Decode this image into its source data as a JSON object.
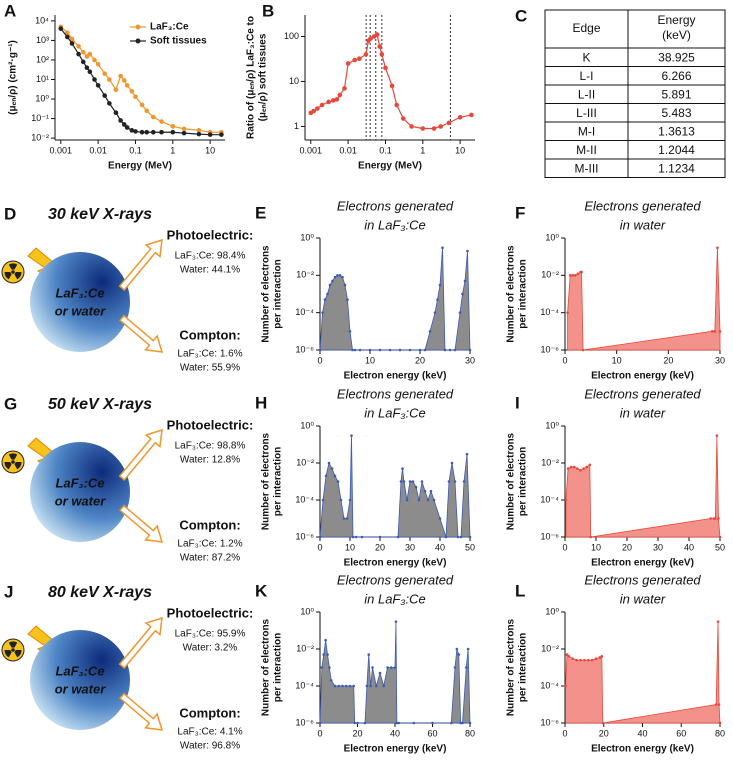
{
  "chart_data": [
    {
      "type": "line",
      "panel_label": "A",
      "xscale": "log",
      "yscale": "log",
      "xlabel": "Energy (MeV)",
      "ylabel": [
        "(μₑₙ/ρ) (cm²·g⁻¹)"
      ],
      "xlim": [
        0.0007,
        25
      ],
      "ylim": [
        0.008,
        20000
      ],
      "xticks": [
        0.001,
        0.01,
        0.1,
        1,
        10
      ],
      "yticks": [
        {
          "value": 0.01,
          "label": "10⁻²"
        },
        {
          "value": 0.1,
          "label": "10⁻¹"
        },
        {
          "value": 1,
          "label": "10⁰"
        },
        {
          "value": 10,
          "label": "10¹"
        },
        {
          "value": 100,
          "label": "10²"
        },
        {
          "value": 1000,
          "label": "10³"
        },
        {
          "value": 10000,
          "label": "10⁴"
        }
      ],
      "legend": "upper right",
      "series": [
        {
          "name": "LaF₃:Ce",
          "color": "#f0962d",
          "x": [
            0.001,
            0.0015,
            0.002,
            0.003,
            0.004,
            0.005,
            0.006,
            0.008,
            0.01,
            0.015,
            0.02,
            0.03,
            0.04,
            0.05,
            0.06,
            0.08,
            0.1,
            0.15,
            0.2,
            0.3,
            0.5,
            1,
            2,
            5,
            10,
            20
          ],
          "values": [
            5000,
            2500,
            1200,
            500,
            250,
            150,
            200,
            100,
            60,
            20,
            10,
            3,
            15,
            9,
            5,
            2.5,
            1.3,
            0.5,
            0.25,
            0.12,
            0.07,
            0.04,
            0.03,
            0.025,
            0.02,
            0.02
          ]
        },
        {
          "name": "Soft tissues",
          "color": "#222222",
          "x": [
            0.001,
            0.0015,
            0.002,
            0.003,
            0.004,
            0.005,
            0.006,
            0.008,
            0.01,
            0.015,
            0.02,
            0.03,
            0.04,
            0.05,
            0.06,
            0.08,
            0.1,
            0.15,
            0.2,
            0.3,
            0.5,
            1,
            2,
            5,
            10,
            20
          ],
          "values": [
            4000,
            1500,
            700,
            200,
            80,
            40,
            25,
            10,
            5,
            1.5,
            0.6,
            0.2,
            0.08,
            0.05,
            0.035,
            0.025,
            0.022,
            0.02,
            0.02,
            0.02,
            0.02,
            0.02,
            0.018,
            0.016,
            0.015,
            0.015
          ]
        }
      ]
    },
    {
      "type": "line",
      "panel_label": "B",
      "xscale": "log",
      "yscale": "log",
      "xlabel": "Energy (MeV)",
      "ylabel": [
        "Ratio of (μₑₙ/ρ) LaF₃:Ce to",
        "(μₑₙ/ρ) soft tissues"
      ],
      "xlim": [
        0.0007,
        25
      ],
      "ylim": [
        0.5,
        300
      ],
      "xticks": [
        0.001,
        0.01,
        0.1,
        1,
        10
      ],
      "yticks": [
        1,
        10,
        100
      ],
      "reference_lines": [
        0.0304,
        0.0389,
        0.055,
        0.08,
        5.5
      ],
      "series": [
        {
          "name": null,
          "color": "#e8473a",
          "x": [
            0.001,
            0.0012,
            0.0015,
            0.002,
            0.003,
            0.004,
            0.005,
            0.006,
            0.008,
            0.01,
            0.015,
            0.02,
            0.03,
            0.035,
            0.04,
            0.05,
            0.06,
            0.07,
            0.08,
            0.1,
            0.15,
            0.2,
            0.3,
            0.5,
            1,
            2,
            3,
            5,
            10,
            20
          ],
          "values": [
            2,
            2.2,
            2.5,
            3,
            3.5,
            3.8,
            4,
            5,
            7,
            25,
            30,
            32,
            40,
            80,
            90,
            100,
            110,
            60,
            40,
            20,
            8,
            3,
            1.5,
            1,
            0.9,
            0.9,
            1,
            1.2,
            1.6,
            1.8
          ]
        }
      ]
    },
    {
      "type": "area",
      "panel_label": "E",
      "yscale": "log",
      "title": [
        "Electrons generated",
        "in LaF₃:Ce"
      ],
      "xlabel": "Electron energy (keV)",
      "ylabel": [
        "Number of electrons",
        "per interaction"
      ],
      "xlim": [
        0,
        30
      ],
      "ylim": [
        1e-06,
        1
      ],
      "xticks": [
        0,
        10,
        20,
        30
      ],
      "yticks": [
        {
          "value": 1e-06,
          "label": "10⁻⁶"
        },
        {
          "value": 0.0001,
          "label": "10⁻⁴"
        },
        {
          "value": 0.01,
          "label": "10⁻²"
        },
        {
          "value": 1,
          "label": "10⁰"
        }
      ],
      "series": [
        {
          "name": null,
          "color": "#3b5bb5",
          "fill": "#8c8c8c",
          "x": [
            0,
            0.5,
            1,
            1.5,
            2,
            2.5,
            3,
            3.5,
            4,
            4.5,
            5,
            5.5,
            6,
            6.5,
            7,
            8,
            10,
            12,
            14,
            16,
            18,
            20,
            21,
            22,
            23,
            23.5,
            24,
            24.5,
            25,
            26,
            27,
            28,
            28.5,
            29,
            29.5,
            30
          ],
          "values": [
            1e-06,
            0.0001,
            0.0005,
            0.001,
            0.003,
            0.005,
            0.008,
            0.01,
            0.01,
            0.008,
            0.003,
            0.0005,
            1e-05,
            1e-06,
            1e-06,
            1e-06,
            1e-06,
            1e-06,
            1e-06,
            1e-06,
            1e-06,
            1e-06,
            1e-06,
            1e-05,
            0.0001,
            0.0005,
            0.003,
            0.3,
            1e-06,
            1e-06,
            1e-06,
            0.0001,
            0.001,
            0.005,
            0.2,
            1e-06
          ]
        }
      ]
    },
    {
      "type": "area",
      "panel_label": "F",
      "yscale": "log",
      "title": [
        "Electrons generated",
        "in water"
      ],
      "xlabel": "Electron energy (keV)",
      "ylabel": [
        "Number of electrons",
        "per interaction"
      ],
      "xlim": [
        0,
        30
      ],
      "ylim": [
        1e-06,
        1
      ],
      "xticks": [
        0,
        10,
        20,
        30
      ],
      "yticks": [
        {
          "value": 1e-06,
          "label": "10⁻⁶"
        },
        {
          "value": 0.0001,
          "label": "10⁻⁴"
        },
        {
          "value": 0.01,
          "label": "10⁻²"
        },
        {
          "value": 1,
          "label": "10⁰"
        }
      ],
      "series": [
        {
          "name": null,
          "color": "#e8473a",
          "fill": "#f3928a",
          "x": [
            0.5,
            1,
            1.5,
            2,
            2.5,
            3,
            3.2,
            3.5,
            28.5,
            29,
            29.5,
            30
          ],
          "values": [
            0.0001,
            0.01,
            0.01,
            0.01,
            0.012,
            0.015,
            0.015,
            1e-06,
            1e-05,
            1e-05,
            0.3,
            1e-05
          ]
        }
      ]
    },
    {
      "type": "area",
      "panel_label": "H",
      "yscale": "log",
      "title": [
        "Electrons generated",
        "in LaF₃:Ce"
      ],
      "xlabel": "Electron energy (keV)",
      "ylabel": [
        "Number of electrons",
        "per interaction"
      ],
      "xlim": [
        0,
        50
      ],
      "ylim": [
        1e-06,
        1
      ],
      "xticks": [
        0,
        10,
        20,
        30,
        40,
        50
      ],
      "yticks": [
        {
          "value": 1e-06,
          "label": "10⁻⁶"
        },
        {
          "value": 0.0001,
          "label": "10⁻⁴"
        },
        {
          "value": 0.01,
          "label": "10⁻²"
        },
        {
          "value": 1,
          "label": "10⁰"
        }
      ],
      "series": [
        {
          "name": null,
          "color": "#3b5bb5",
          "fill": "#8c8c8c",
          "x": [
            0,
            1,
            2,
            3,
            4,
            5,
            6,
            7,
            8,
            9,
            10,
            10.5,
            11,
            12,
            14,
            20,
            26,
            27,
            27.5,
            28,
            29,
            30,
            31,
            32,
            33,
            34,
            35,
            36,
            37,
            38,
            40,
            42,
            43,
            44,
            45,
            46,
            47,
            48,
            49,
            50
          ],
          "values": [
            1e-06,
            0.0001,
            0.002,
            0.01,
            0.005,
            0.002,
            0.001,
            0.0001,
            1e-05,
            1e-05,
            0.0001,
            0.3,
            1e-06,
            1e-06,
            1e-06,
            1e-06,
            1e-06,
            0.001,
            0.005,
            0.001,
            0.0001,
            0.001,
            0.001,
            0.0005,
            0.0001,
            0.001,
            0.0003,
            0.0001,
            0.0003,
            0.0001,
            1e-05,
            1e-06,
            0.001,
            0.01,
            0.001,
            1e-06,
            1e-06,
            0.001,
            0.03,
            1e-06
          ]
        }
      ]
    },
    {
      "type": "area",
      "panel_label": "I",
      "yscale": "log",
      "title": [
        "Electrons generated",
        "in water"
      ],
      "xlabel": "Electron energy (keV)",
      "ylabel": [
        "Number of electrons",
        "per interaction"
      ],
      "xlim": [
        0,
        50
      ],
      "ylim": [
        1e-06,
        1
      ],
      "xticks": [
        0,
        10,
        20,
        30,
        40,
        50
      ],
      "yticks": [
        {
          "value": 1e-06,
          "label": "10⁻⁶"
        },
        {
          "value": 0.0001,
          "label": "10⁻⁴"
        },
        {
          "value": 0.01,
          "label": "10⁻²"
        },
        {
          "value": 1,
          "label": "10⁰"
        }
      ],
      "series": [
        {
          "name": null,
          "color": "#e8473a",
          "fill": "#f3928a",
          "x": [
            0.3,
            1,
            2,
            3,
            4,
            5,
            6,
            7,
            8,
            8.3,
            47,
            48,
            48.5,
            49,
            49.5,
            50
          ],
          "values": [
            0.0001,
            0.005,
            0.006,
            0.006,
            0.005,
            0.004,
            0.005,
            0.006,
            0.008,
            1e-06,
            1e-05,
            1e-05,
            1e-05,
            0.3,
            1e-05,
            1e-06
          ]
        }
      ]
    },
    {
      "type": "area",
      "panel_label": "K",
      "yscale": "log",
      "title": [
        "Electrons generated",
        "in LaF₃:Ce"
      ],
      "xlabel": "Electron energy (keV)",
      "ylabel": [
        "Number of electrons",
        "per interaction"
      ],
      "xlim": [
        0,
        80
      ],
      "ylim": [
        1e-06,
        1
      ],
      "xticks": [
        0,
        20,
        40,
        60,
        80
      ],
      "yticks": [
        {
          "value": 1e-06,
          "label": "10⁻⁶"
        },
        {
          "value": 0.0001,
          "label": "10⁻⁴"
        },
        {
          "value": 0.01,
          "label": "10⁻²"
        },
        {
          "value": 1,
          "label": "10⁰"
        }
      ],
      "series": [
        {
          "name": null,
          "color": "#3b5bb5",
          "fill": "#8c8c8c",
          "x": [
            0,
            1,
            2,
            3,
            4,
            5,
            6,
            8,
            10,
            12,
            14,
            16,
            18,
            18.5,
            20,
            24,
            25,
            26,
            27,
            28,
            30,
            32,
            34,
            36,
            38,
            40,
            40.5,
            41,
            42,
            50,
            60,
            70,
            72,
            73,
            74,
            75,
            76,
            78,
            79,
            80
          ],
          "values": [
            1e-06,
            0.001,
            0.005,
            0.03,
            0.005,
            0.001,
            0.0002,
            0.0001,
            0.0001,
            0.0001,
            0.0001,
            0.0001,
            0.0001,
            1e-06,
            1e-06,
            1e-06,
            0.0001,
            0.005,
            0.0001,
            0.001,
            0.0001,
            0.0005,
            0.0001,
            0.001,
            0.001,
            0.001,
            0.3,
            1e-06,
            1e-06,
            1e-06,
            1e-06,
            1e-06,
            0.001,
            0.01,
            0.005,
            1e-06,
            1e-06,
            0.001,
            0.01,
            1e-06
          ]
        }
      ]
    },
    {
      "type": "area",
      "panel_label": "L",
      "yscale": "log",
      "title": [
        "Electrons generated",
        "in water"
      ],
      "xlabel": "Electron energy (keV)",
      "ylabel": [
        "Number of electrons",
        "per interaction"
      ],
      "xlim": [
        0,
        80
      ],
      "ylim": [
        1e-06,
        1
      ],
      "xticks": [
        0,
        20,
        40,
        60,
        80
      ],
      "yticks": [
        {
          "value": 1e-06,
          "label": "10⁻⁶"
        },
        {
          "value": 0.0001,
          "label": "10⁻⁴"
        },
        {
          "value": 0.01,
          "label": "10⁻²"
        },
        {
          "value": 1,
          "label": "10⁰"
        }
      ],
      "series": [
        {
          "name": null,
          "color": "#e8473a",
          "fill": "#f3928a",
          "x": [
            0.3,
            1,
            2,
            4,
            6,
            8,
            10,
            12,
            14,
            16,
            18,
            19,
            19.5,
            78,
            79,
            79.5,
            80
          ],
          "values": [
            0.0001,
            0.005,
            0.004,
            0.003,
            0.0025,
            0.0025,
            0.0025,
            0.0025,
            0.0025,
            0.003,
            0.0035,
            0.004,
            1e-06,
            1e-05,
            0.3,
            1e-05,
            1e-06
          ]
        }
      ]
    }
  ],
  "table": {
    "panel_label": "C",
    "header": [
      "Edge",
      [
        "Energy",
        "(keV)"
      ]
    ],
    "rows": [
      [
        "K",
        38.925
      ],
      [
        "L-I",
        6.266
      ],
      [
        "L-II",
        5.891
      ],
      [
        "L-III",
        5.483
      ],
      [
        "M-I",
        1.3613
      ],
      [
        "M-II",
        1.2044
      ],
      [
        "M-III",
        1.1234
      ]
    ]
  },
  "diagrams": [
    {
      "panel_label": "D",
      "title": "30 keV X-rays",
      "sphere_label": [
        "LaF₃:Ce",
        "or water"
      ],
      "photoelectric": [
        "Photoelectric:",
        "LaF₃:Ce: 98.4%",
        "Water: 44.1%"
      ],
      "compton": [
        "Compton:",
        "LaF₃:Ce: 1.6%",
        "Water: 55.9%"
      ]
    },
    {
      "panel_label": "G",
      "title": "50 keV X-rays",
      "sphere_label": [
        "LaF₃:Ce",
        "or water"
      ],
      "photoelectric": [
        "Photoelectric:",
        "LaF₃:Ce: 98.8%",
        "Water: 12.8%"
      ],
      "compton": [
        "Compton:",
        "LaF₃:Ce: 1.2%",
        "Water: 87.2%"
      ]
    },
    {
      "panel_label": "J",
      "title": "80 keV X-rays",
      "sphere_label": [
        "LaF₃:Ce",
        "or water"
      ],
      "photoelectric": [
        "Photoelectric:",
        "LaF₃:Ce: 95.9%",
        "Water: 3.2%"
      ],
      "compton": [
        "Compton:",
        "LaF₃:Ce: 4.1%",
        "Water: 96.8%"
      ]
    }
  ]
}
